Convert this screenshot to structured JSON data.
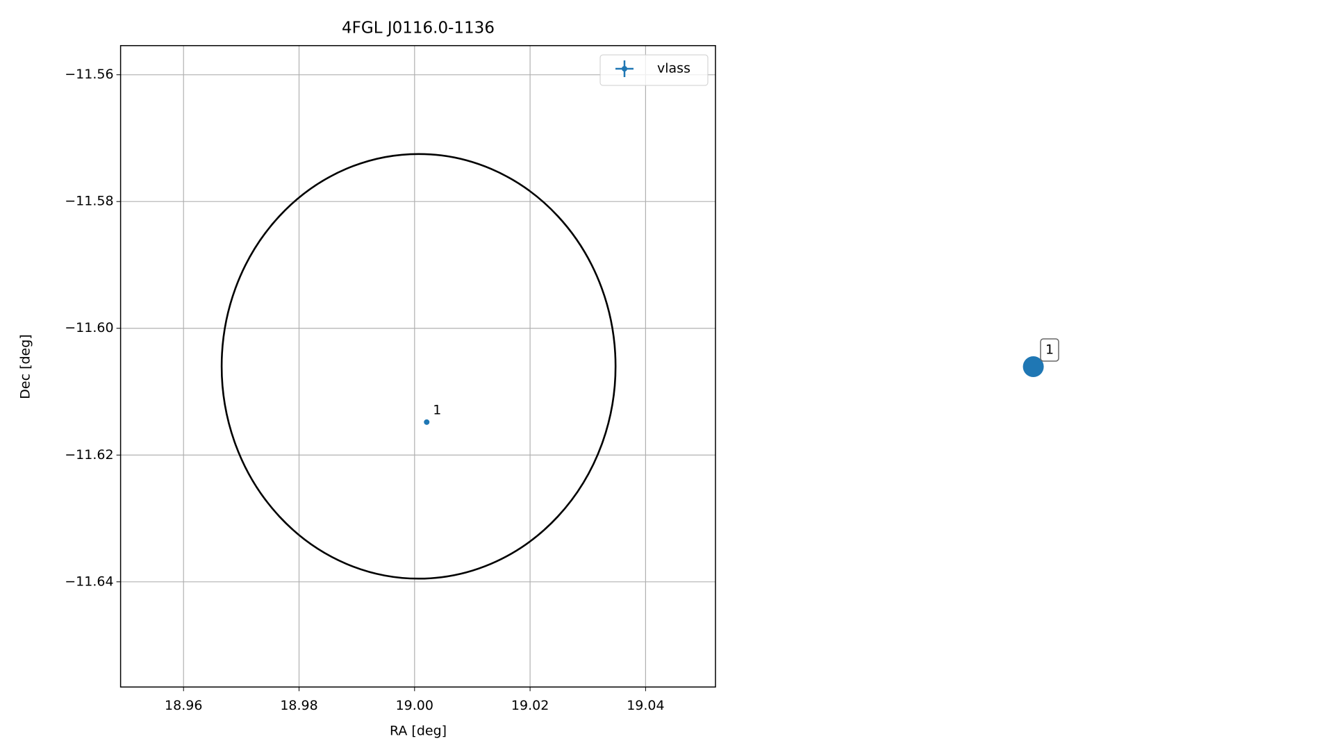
{
  "chart_data": {
    "type": "scatter",
    "title": "4FGL J0116.0-1136",
    "x_label": "RA [deg]",
    "y_label": "Dec [deg]",
    "xlim": [
      18.9491,
      19.0521
    ],
    "ylim": [
      -11.6566,
      -11.5554
    ],
    "xticks": [
      18.96,
      18.98,
      {
        "value": 19.0,
        "label": "19.00"
      },
      19.02,
      19.04
    ],
    "yticks": [
      {
        "value": -11.56,
        "label": "−11.56"
      },
      {
        "value": -11.58,
        "label": "−11.58"
      },
      {
        "value": -11.6,
        "label": "−11.60"
      },
      {
        "value": -11.62,
        "label": "−11.62"
      },
      {
        "value": -11.64,
        "label": "−11.64"
      }
    ],
    "grid": true,
    "legend": "upper right",
    "circle": {
      "center": [
        19.0007,
        -11.606
      ],
      "radius": [
        0.0341,
        0.0335
      ],
      "color": "#000000"
    },
    "series": [
      {
        "name": "vlass",
        "color": "#1f77b4",
        "x": [
          19.0021
        ],
        "values": [
          -11.6148
        ],
        "labels": [
          "1"
        ]
      }
    ]
  }
}
